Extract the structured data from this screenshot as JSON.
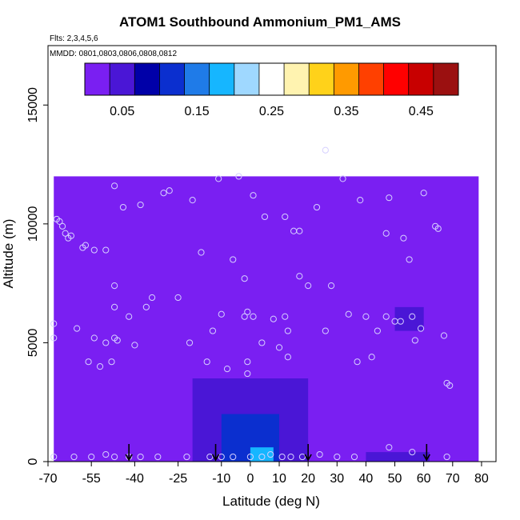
{
  "chart_data": {
    "type": "heatmap",
    "title": "ATOM1 Southbound Ammonium_PM1_AMS",
    "flights_label": "Flts: 2,3,4,5,6",
    "dates_label": "MMDD: 0801,0803,0806,0808,0812",
    "xlabel": "Latitude (deg N)",
    "ylabel": "Altitude (m)",
    "xlim": [
      -70,
      85
    ],
    "ylim": [
      0,
      17500
    ],
    "x_ticks": [
      -70,
      -55,
      -40,
      -25,
      -10,
      0,
      10,
      20,
      30,
      40,
      50,
      60,
      70,
      80
    ],
    "y_ticks": [
      0,
      5000,
      10000,
      15000
    ],
    "colorbar": {
      "range": [
        0,
        0.5
      ],
      "ticks": [
        0.05,
        0.15,
        0.25,
        0.35,
        0.45
      ],
      "tick_labels": [
        "0.05",
        "0.15",
        "0.25",
        "0.35",
        "0.45"
      ],
      "colors": [
        "#7a1ff2",
        "#4a16d6",
        "#0000a8",
        "#0b2fcf",
        "#1f7be8",
        "#16b6ff",
        "#9fd8ff",
        "#ffffff",
        "#fff3b0",
        "#ffd21a",
        "#ff9a00",
        "#ff4000",
        "#ff0000",
        "#c80000",
        "#9b1010"
      ]
    },
    "background_value": 0.02,
    "regions": [
      {
        "name": "upper-envelope",
        "lat_min": -68,
        "lat_max": 79,
        "alt_min": 0,
        "alt_max": 12000,
        "value": 0.02
      },
      {
        "name": "tropical-plume-outer",
        "lat_min": -20,
        "lat_max": 20,
        "alt_min": 0,
        "alt_max": 3500,
        "value": 0.05
      },
      {
        "name": "tropical-plume-core",
        "lat_min": -10,
        "lat_max": 10,
        "alt_min": 0,
        "alt_max": 2000,
        "value": 0.1
      },
      {
        "name": "tropical-surface-peak",
        "lat_min": 0,
        "lat_max": 8,
        "alt_min": 0,
        "alt_max": 600,
        "value": 0.18
      },
      {
        "name": "northern-surface-band",
        "lat_min": 40,
        "lat_max": 62,
        "alt_min": 0,
        "alt_max": 400,
        "value": 0.06
      },
      {
        "name": "northern-midlevel-patch",
        "lat_min": 50,
        "lat_max": 60,
        "alt_min": 5500,
        "alt_max": 6500,
        "value": 0.05
      }
    ],
    "sample_points": [
      [
        -68,
        5800
      ],
      [
        -68,
        5200
      ],
      [
        -67,
        10200
      ],
      [
        -66,
        10100
      ],
      [
        -65,
        9900
      ],
      [
        -64,
        9600
      ],
      [
        -63,
        9400
      ],
      [
        -62,
        9500
      ],
      [
        -58,
        9000
      ],
      [
        -57,
        9100
      ],
      [
        -54,
        8900
      ],
      [
        -50,
        8900
      ],
      [
        -60,
        5600
      ],
      [
        -56,
        4200
      ],
      [
        -54,
        5200
      ],
      [
        -52,
        4000
      ],
      [
        -50,
        5000
      ],
      [
        -48,
        4200
      ],
      [
        -47,
        5200
      ],
      [
        -46,
        5100
      ],
      [
        -47,
        6500
      ],
      [
        -47,
        7400
      ],
      [
        -44,
        10700
      ],
      [
        -47,
        11600
      ],
      [
        -42,
        6100
      ],
      [
        -40,
        4900
      ],
      [
        -38,
        10800
      ],
      [
        -36,
        6500
      ],
      [
        -34,
        6900
      ],
      [
        -30,
        11300
      ],
      [
        -28,
        11400
      ],
      [
        -25,
        6900
      ],
      [
        -21,
        5000
      ],
      [
        -20,
        11000
      ],
      [
        -17,
        8800
      ],
      [
        -15,
        4200
      ],
      [
        -13,
        5500
      ],
      [
        -11,
        11900
      ],
      [
        -10,
        6200
      ],
      [
        -8,
        3900
      ],
      [
        -6,
        8500
      ],
      [
        -4,
        12000
      ],
      [
        -2,
        7700
      ],
      [
        -1,
        6300
      ],
      [
        -2,
        6100
      ],
      [
        -1,
        4200
      ],
      [
        -1,
        3700
      ],
      [
        1,
        11200
      ],
      [
        1,
        6100
      ],
      [
        5,
        10300
      ],
      [
        4,
        5000
      ],
      [
        8,
        6000
      ],
      [
        10,
        4800
      ],
      [
        12,
        6100
      ],
      [
        13,
        4400
      ],
      [
        13,
        5500
      ],
      [
        15,
        9700
      ],
      [
        17,
        9700
      ],
      [
        12,
        10300
      ],
      [
        17,
        7800
      ],
      [
        20,
        7400
      ],
      [
        26,
        5500
      ],
      [
        23,
        10700
      ],
      [
        26,
        13100
      ],
      [
        28,
        7400
      ],
      [
        32,
        11900
      ],
      [
        34,
        6200
      ],
      [
        37,
        4200
      ],
      [
        38,
        11000
      ],
      [
        40,
        6100
      ],
      [
        42,
        4400
      ],
      [
        44,
        5500
      ],
      [
        47,
        6100
      ],
      [
        47,
        9600
      ],
      [
        48,
        11100
      ],
      [
        50,
        5900
      ],
      [
        52,
        5900
      ],
      [
        53,
        9400
      ],
      [
        55,
        8500
      ],
      [
        56,
        6100
      ],
      [
        57,
        5100
      ],
      [
        59,
        5600
      ],
      [
        60,
        11300
      ],
      [
        64,
        9900
      ],
      [
        65,
        9800
      ],
      [
        67,
        5300
      ],
      [
        68,
        3300
      ],
      [
        69,
        3200
      ],
      [
        -68,
        200
      ],
      [
        -61,
        200
      ],
      [
        -55,
        200
      ],
      [
        -50,
        300
      ],
      [
        -47,
        200
      ],
      [
        -42,
        200
      ],
      [
        -38,
        200
      ],
      [
        -32,
        200
      ],
      [
        -22,
        200
      ],
      [
        -14,
        200
      ],
      [
        -10,
        200
      ],
      [
        -6,
        200
      ],
      [
        0,
        200
      ],
      [
        4,
        200
      ],
      [
        7,
        300
      ],
      [
        11,
        200
      ],
      [
        14,
        200
      ],
      [
        18,
        200
      ],
      [
        24,
        300
      ],
      [
        30,
        200
      ],
      [
        36,
        200
      ],
      [
        48,
        600
      ],
      [
        56,
        400
      ],
      [
        68,
        200
      ]
    ],
    "arrow_latitudes": [
      -42,
      -12,
      20,
      61
    ]
  }
}
